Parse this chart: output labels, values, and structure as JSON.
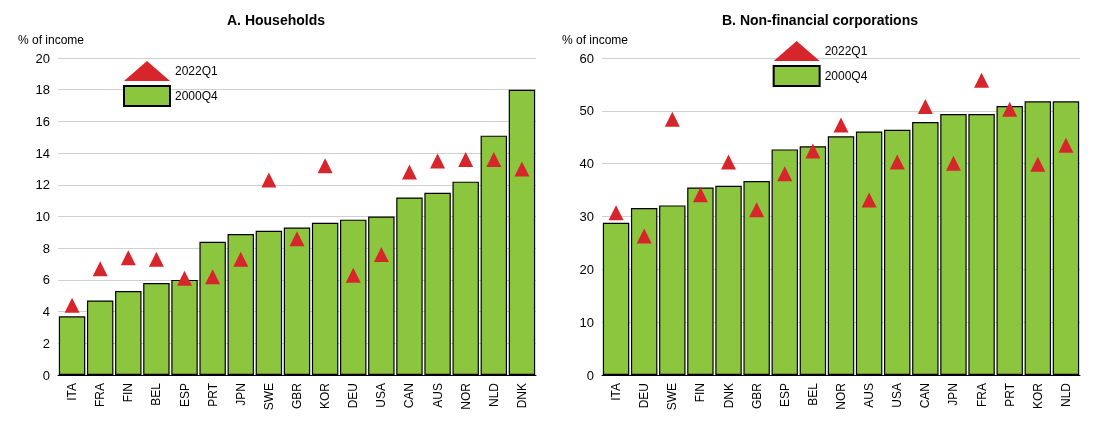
{
  "chart_data": [
    {
      "type": "bar",
      "title": "A. Households",
      "ylabel": "% of income",
      "categories": [
        "ITA",
        "FRA",
        "FIN",
        "BEL",
        "ESP",
        "PRT",
        "JPN",
        "SWE",
        "GBR",
        "KOR",
        "DEU",
        "USA",
        "CAN",
        "AUS",
        "NOR",
        "NLD",
        "DNK"
      ],
      "ylim": [
        0,
        20
      ],
      "yticks": [
        0,
        2,
        4,
        6,
        8,
        10,
        12,
        14,
        16,
        18,
        20
      ],
      "grid": "y",
      "legend": "top left",
      "marker": "triangle",
      "series": [
        {
          "name": "2022Q1",
          "type": "scatter",
          "color": "#d7262b",
          "x": [
            "ITA",
            "FRA",
            "FIN",
            "BEL",
            "ESP",
            "PRT",
            "JPN",
            "SWE",
            "GBR",
            "KOR",
            "DEU",
            "USA",
            "CAN",
            "AUS",
            "NOR",
            "NLD",
            "DNK"
          ],
          "values": [
            4.4,
            6.7,
            7.4,
            7.3,
            6.1,
            6.2,
            7.3,
            12.3,
            8.6,
            13.2,
            6.3,
            7.6,
            12.8,
            13.5,
            13.6,
            13.6,
            13.0
          ]
        },
        {
          "name": "2000Q4",
          "color": "#8cc63f",
          "values": [
            3.7,
            4.7,
            5.3,
            5.8,
            6.0,
            8.4,
            8.9,
            9.1,
            9.3,
            9.6,
            9.8,
            10.0,
            11.2,
            11.5,
            12.2,
            15.1,
            18.0
          ]
        }
      ]
    },
    {
      "type": "bar",
      "title": "B. Non-financial corporations",
      "ylabel": "% of income",
      "categories": [
        "ITA",
        "DEU",
        "SWE",
        "FIN",
        "DNK",
        "GBR",
        "ESP",
        "BEL",
        "NOR",
        "AUS",
        "USA",
        "CAN",
        "JPN",
        "FRA",
        "PRT",
        "KOR",
        "NLD"
      ],
      "ylim": [
        0,
        60
      ],
      "yticks": [
        0,
        10,
        20,
        30,
        40,
        50,
        60
      ],
      "grid": "y",
      "legend": "top",
      "marker": "triangle",
      "series": [
        {
          "name": "2022Q1",
          "type": "scatter",
          "color": "#d7262b",
          "x": [
            "ITA",
            "DEU",
            "SWE",
            "FIN",
            "DNK",
            "GBR",
            "ESP",
            "BEL",
            "NOR",
            "AUS",
            "USA",
            "CAN",
            "JPN",
            "FRA",
            "PRT",
            "KOR",
            "NLD"
          ],
          "values": [
            30.7,
            26.3,
            48.4,
            34.1,
            40.3,
            31.3,
            38.1,
            42.4,
            47.3,
            33.1,
            40.3,
            50.8,
            40.1,
            55.8,
            50.3,
            39.9,
            43.5
          ]
        },
        {
          "name": "2000Q4",
          "color": "#8cc63f",
          "values": [
            28.8,
            31.6,
            32.1,
            35.5,
            35.8,
            36.7,
            42.7,
            43.3,
            45.2,
            46.1,
            46.4,
            47.9,
            49.4,
            49.4,
            50.9,
            51.8,
            51.8
          ]
        }
      ]
    }
  ]
}
